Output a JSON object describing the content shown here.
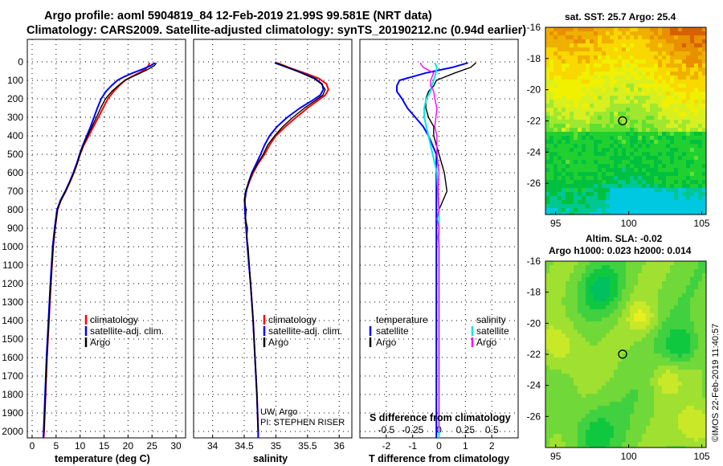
{
  "header": {
    "line1": "Argo profile: aoml 5904819_84 12-Feb-2019 21.99S 99.581E (NRT data)",
    "line2": "Climatology: CARS2009. Satellite-adjusted climatology: synTS_20190212.nc (0.94d earlier)"
  },
  "colors": {
    "climatology": "#ff0000",
    "satellite": "#0000ff",
    "argo": "#000000",
    "salinity_satellite": "#00e8e8",
    "salinity_argo": "#ff00ff"
  },
  "depth_ticks": [
    "0",
    "100",
    "200",
    "300",
    "400",
    "500",
    "600",
    "700",
    "800",
    "900",
    "1000",
    "1100",
    "1200",
    "1300",
    "1400",
    "1500",
    "1600",
    "1700",
    "1800",
    "1900",
    "2000"
  ],
  "chart_data": [
    {
      "id": "temperature",
      "type": "line",
      "xlabel": "temperature (deg C)",
      "ylabel": "depth",
      "xlim": [
        -1,
        32
      ],
      "ylim": [
        2060,
        -20
      ],
      "xticks": [
        "0",
        "5",
        "10",
        "15",
        "20",
        "25",
        "30"
      ],
      "legend": [
        "climatology",
        "satellite-adj. clim.",
        "Argo"
      ],
      "legend_position": "lower-center",
      "series": [
        {
          "name": "climatology",
          "y": [
            5,
            20,
            40,
            60,
            80,
            100,
            130,
            160,
            200,
            250,
            300,
            350,
            400,
            450,
            500,
            550,
            600,
            650,
            700,
            750,
            800,
            900,
            1000,
            1200,
            1400,
            1600,
            1800,
            2000,
            2050
          ],
          "x": [
            24.5,
            24.3,
            23.6,
            22.3,
            20.8,
            19.4,
            18.1,
            17.0,
            15.8,
            14.8,
            13.8,
            12.8,
            11.8,
            10.8,
            10.0,
            9.4,
            8.7,
            7.9,
            7.0,
            6.0,
            5.3,
            4.8,
            4.4,
            3.9,
            3.5,
            3.1,
            2.8,
            2.5,
            2.4
          ]
        },
        {
          "name": "satellite-adj. clim.",
          "y": [
            5,
            20,
            40,
            60,
            80,
            100,
            130,
            160,
            200,
            250,
            300,
            350,
            400,
            450,
            500,
            550,
            600,
            650,
            700,
            750,
            800,
            900,
            1000,
            1200,
            1400,
            1600,
            1800,
            2000,
            2050
          ],
          "x": [
            25.6,
            24.8,
            23.0,
            21.0,
            19.2,
            17.8,
            16.5,
            15.4,
            14.4,
            13.6,
            12.9,
            12.2,
            11.4,
            10.6,
            9.9,
            9.3,
            8.6,
            7.8,
            6.9,
            5.9,
            5.2,
            4.7,
            4.3,
            3.8,
            3.4,
            3.0,
            2.7,
            2.4,
            2.3
          ]
        },
        {
          "name": "Argo",
          "y": [
            5,
            20,
            40,
            60,
            80,
            100,
            130,
            160,
            200,
            250,
            300,
            350,
            400,
            450,
            500,
            550,
            600,
            650,
            700,
            750,
            800,
            900,
            1000,
            1200,
            1400,
            1600,
            1800,
            2000
          ],
          "x": [
            25.9,
            25.5,
            24.2,
            22.6,
            20.9,
            19.3,
            17.9,
            16.6,
            15.3,
            14.3,
            13.4,
            12.5,
            11.6,
            10.7,
            10.0,
            9.4,
            8.7,
            7.9,
            7.0,
            6.0,
            5.3,
            4.8,
            4.4,
            3.9,
            3.5,
            3.1,
            2.8,
            2.5
          ]
        }
      ]
    },
    {
      "id": "salinity",
      "type": "line",
      "xlabel": "salinity",
      "ylabel": "depth",
      "xlim": [
        33.7,
        36.2
      ],
      "ylim": [
        2060,
        -20
      ],
      "xticks": [
        "34",
        "34.5",
        "35",
        "35.5",
        "36"
      ],
      "legend": [
        "climatology",
        "satellite-adj. clim.",
        "Argo"
      ],
      "legend_position": "lower-right",
      "annotations": [
        "UW, Argo",
        "PI: STEPHEN RISER"
      ],
      "series": [
        {
          "name": "climatology",
          "y": [
            5,
            30,
            60,
            90,
            120,
            150,
            180,
            210,
            250,
            300,
            350,
            400,
            450,
            500,
            550,
            600,
            650,
            700,
            750,
            800,
            850,
            900,
            950,
            1000,
            1200,
            1400,
            1600,
            1800,
            2000,
            2050
          ],
          "x": [
            35.02,
            35.2,
            35.45,
            35.68,
            35.8,
            35.83,
            35.78,
            35.66,
            35.5,
            35.32,
            35.15,
            35.0,
            34.9,
            34.82,
            34.72,
            34.64,
            34.58,
            34.53,
            34.51,
            34.51,
            34.52,
            34.53,
            34.54,
            34.55,
            34.6,
            34.64,
            34.67,
            34.7,
            34.72,
            34.72
          ]
        },
        {
          "name": "satellite-adj. clim.",
          "y": [
            5,
            30,
            60,
            90,
            120,
            150,
            180,
            210,
            250,
            300,
            350,
            400,
            450,
            500,
            550,
            600,
            650,
            700,
            750,
            800,
            850,
            900,
            950,
            1000,
            1200,
            1400,
            1600,
            1800,
            2000,
            2050
          ],
          "x": [
            34.98,
            35.18,
            35.42,
            35.62,
            35.73,
            35.75,
            35.7,
            35.57,
            35.38,
            35.18,
            35.02,
            34.9,
            34.82,
            34.76,
            34.69,
            34.62,
            34.57,
            34.53,
            34.51,
            34.51,
            34.52,
            34.53,
            34.54,
            34.55,
            34.6,
            34.64,
            34.67,
            34.7,
            34.72,
            34.72
          ]
        },
        {
          "name": "Argo",
          "y": [
            5,
            30,
            60,
            90,
            120,
            150,
            180,
            210,
            250,
            300,
            350,
            400,
            450,
            500,
            550,
            600,
            650,
            700,
            750,
            800,
            850,
            900,
            950,
            1000,
            1200,
            1400,
            1600,
            1800,
            2000
          ],
          "x": [
            35.0,
            35.19,
            35.4,
            35.6,
            35.72,
            35.78,
            35.74,
            35.62,
            35.45,
            35.27,
            35.11,
            34.98,
            34.87,
            34.8,
            34.71,
            34.63,
            34.57,
            34.52,
            34.5,
            34.53,
            34.52,
            34.55,
            34.54,
            34.56,
            34.6,
            34.64,
            34.67,
            34.7,
            34.72
          ]
        }
      ]
    },
    {
      "id": "difference",
      "type": "line",
      "xlabel": "T difference from climatology",
      "xlabel_top": "S difference from climatology",
      "ylabel": "depth",
      "xlim": [
        -3,
        3
      ],
      "ylim": [
        2060,
        -20
      ],
      "xticks": [
        "-2",
        "-1",
        "0",
        "1",
        "2"
      ],
      "xticks_top": [
        "-0.5",
        "-0.25",
        "0",
        "0.25",
        "0.5"
      ],
      "legend_left_title": "temperature",
      "legend_right_title": "salinity",
      "legend_left": [
        "satellite",
        "Argo"
      ],
      "legend_right": [
        "satellite",
        "Argo"
      ],
      "series": [
        {
          "name": "T satellite",
          "y": [
            5,
            30,
            60,
            100,
            130,
            160,
            200,
            250,
            300,
            350,
            400,
            500,
            600,
            700,
            800,
            900,
            1000,
            1200,
            1400,
            1600,
            1800,
            2000,
            2050
          ],
          "x": [
            1.1,
            0.5,
            -0.5,
            -1.5,
            -1.6,
            -1.6,
            -1.4,
            -1.2,
            -0.9,
            -0.6,
            -0.4,
            -0.1,
            -0.1,
            -0.1,
            -0.1,
            -0.1,
            -0.1,
            -0.1,
            -0.1,
            -0.1,
            -0.1,
            -0.1,
            -0.1
          ]
        },
        {
          "name": "T Argo",
          "y": [
            5,
            30,
            60,
            100,
            130,
            160,
            200,
            250,
            300,
            350,
            400,
            500,
            600,
            700,
            800,
            900,
            1000,
            1200,
            1400,
            1600,
            1800,
            2000
          ],
          "x": [
            1.4,
            1.2,
            0.6,
            -0.1,
            -0.2,
            -0.4,
            -0.5,
            -0.5,
            -0.4,
            -0.2,
            -0.2,
            0.0,
            0.2,
            0.3,
            0.0,
            0.0,
            0.0,
            0.0,
            0.0,
            0.0,
            0.0,
            0.0
          ]
        },
        {
          "name": "S satellite",
          "y": [
            5,
            30,
            60,
            100,
            130,
            160,
            200,
            250,
            300,
            350,
            400,
            500,
            600,
            700,
            800,
            900,
            1000,
            1200,
            1400,
            1600,
            1800,
            2000,
            2050
          ],
          "x": [
            -0.04,
            -0.02,
            -0.03,
            -0.05,
            -0.07,
            -0.08,
            -0.12,
            -0.14,
            -0.14,
            -0.12,
            -0.1,
            -0.06,
            -0.02,
            -0.01,
            0.0,
            0.0,
            0.0,
            0.0,
            0.0,
            0.0,
            0.0,
            0.0,
            0.0
          ]
        },
        {
          "name": "S Argo",
          "y": [
            5,
            30,
            60,
            100,
            130,
            160,
            200,
            250,
            300,
            350,
            400,
            500,
            600,
            700,
            800,
            850,
            900,
            950,
            1000,
            1200,
            1400,
            1600,
            1800,
            2000
          ],
          "x": [
            -0.18,
            -0.15,
            -0.05,
            -0.08,
            -0.08,
            -0.05,
            -0.04,
            -0.02,
            -0.03,
            -0.04,
            -0.02,
            -0.02,
            0.0,
            -0.01,
            0.0,
            -0.02,
            0.0,
            -0.01,
            0.0,
            0.0,
            0.0,
            0.0,
            0.0,
            0.0
          ]
        }
      ]
    },
    {
      "id": "sst_map",
      "type": "heatmap",
      "title": "sat. SST: 25.7 Argo: 25.4",
      "xlim": [
        94.3,
        105.3
      ],
      "ylim": [
        -28,
        -16
      ],
      "xticks": [
        "95",
        "100",
        "105"
      ],
      "yticks": [
        "-16",
        "-18",
        "-20",
        "-22",
        "-24",
        "-26"
      ],
      "marker": {
        "lon": 99.58,
        "lat": -21.99
      }
    },
    {
      "id": "sla_map",
      "type": "heatmap",
      "title": "Altim. SLA: -0.02",
      "subtitle": "Argo h1000: 0.023 h2000: 0.014",
      "xlim": [
        94.3,
        105.3
      ],
      "ylim": [
        -28,
        -16
      ],
      "xticks": [
        "95",
        "100",
        "105"
      ],
      "yticks": [
        "-16",
        "-18",
        "-20",
        "-22",
        "-24",
        "-26"
      ],
      "marker": {
        "lon": 99.58,
        "lat": -21.99
      }
    }
  ],
  "credit": "©IMOS 22-Feb-2019 11:40:57"
}
